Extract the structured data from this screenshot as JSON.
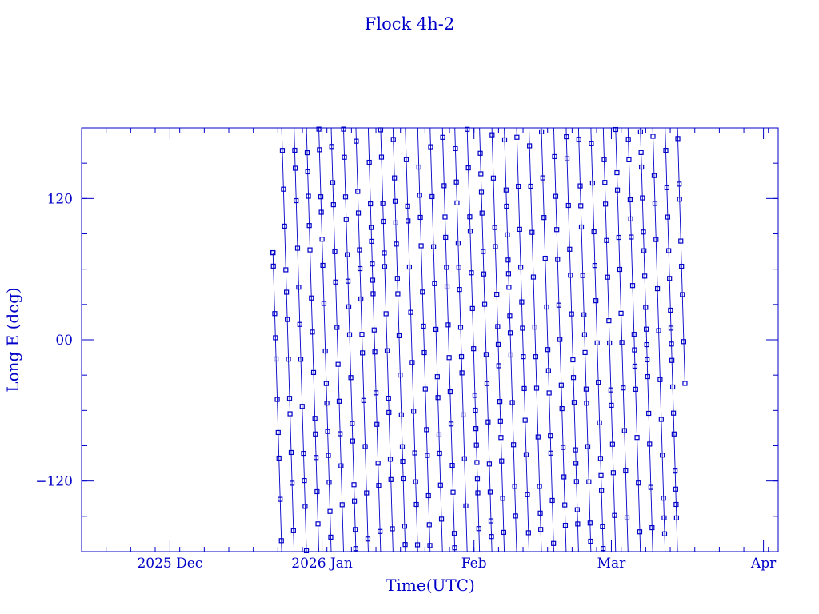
{
  "chart_data": {
    "type": "line",
    "title": "Flock 4h-2",
    "xlabel": "Time(UTC)",
    "ylabel": "Long E (deg)",
    "x_range": [
      "2025-11-13",
      "2026-04-04"
    ],
    "ylim": [
      -180,
      180
    ],
    "x_ticks": [
      {
        "label": "2025 Dec",
        "date": "2025-12-01"
      },
      {
        "label": "2026 Jan",
        "date": "2026-01-01"
      },
      {
        "label": "Feb",
        "date": "2026-02-01"
      },
      {
        "label": "Mar",
        "date": "2026-03-01"
      },
      {
        "label": "Apr",
        "date": "2026-04-01"
      }
    ],
    "y_ticks": [
      {
        "label": "120",
        "value": 120
      },
      {
        "label": "00",
        "value": 0
      },
      {
        "label": "−120",
        "value": -120
      }
    ],
    "data_start": "2025-12-22",
    "data_end": "2026-03-16",
    "start_value": 74,
    "end_value": -37,
    "drift_deg_per_day": -144,
    "marker": "square",
    "line_color": "#0000c8",
    "grid": false
  }
}
